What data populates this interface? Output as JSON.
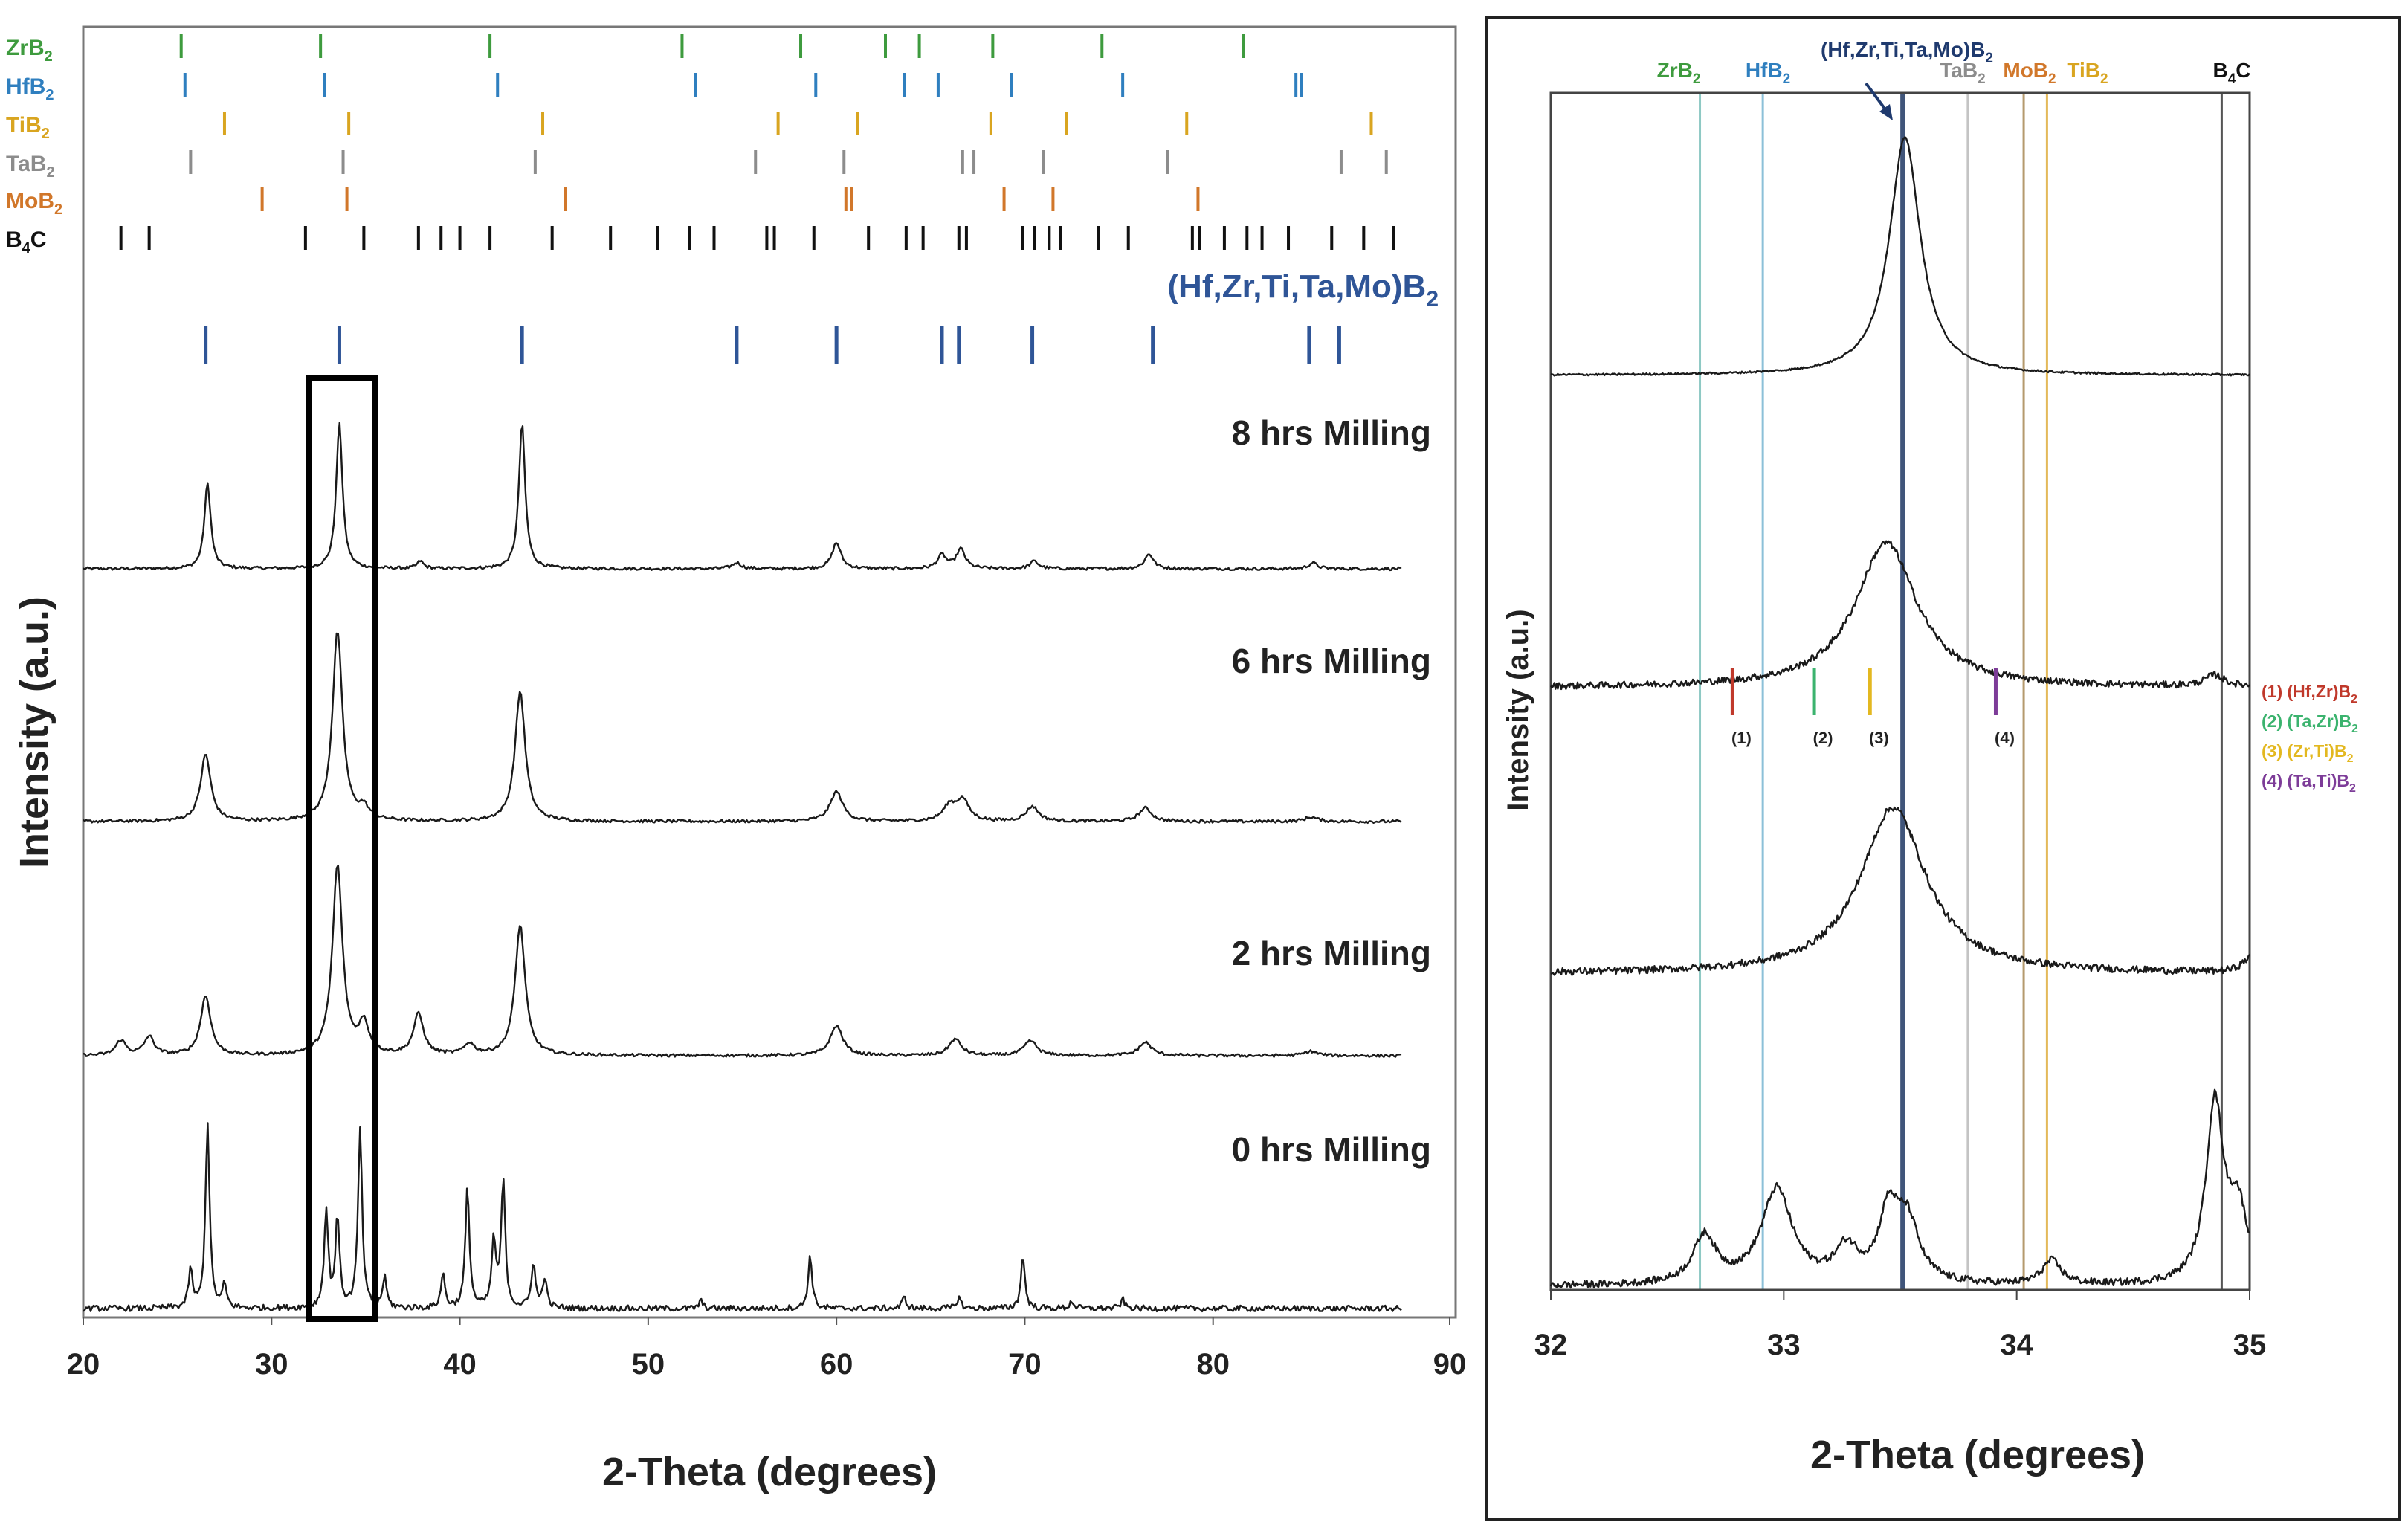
{
  "chart_data": [
    {
      "type": "line",
      "title": "",
      "xlabel": "2-Theta (degrees)",
      "ylabel": "Intensity (a.u.)",
      "xlim": [
        20,
        90
      ],
      "xticks": [
        "20",
        "30",
        "40",
        "50",
        "60",
        "70",
        "80",
        "90"
      ],
      "grid": false,
      "reference_phases": [
        {
          "name": "ZrB2",
          "label_base": "ZrB",
          "label_sub": "2",
          "color": "#3e9b3e",
          "peaks": [
            25.2,
            32.6,
            41.6,
            51.8,
            58.1,
            62.6,
            64.4,
            68.3,
            74.1,
            81.6
          ]
        },
        {
          "name": "HfB2",
          "label_base": "HfB",
          "label_sub": "2",
          "color": "#2f7fbf",
          "peaks": [
            25.4,
            32.8,
            42.0,
            52.5,
            58.9,
            63.6,
            65.4,
            69.3,
            75.2,
            84.4,
            84.7
          ]
        },
        {
          "name": "TiB2",
          "label_base": "TiB",
          "label_sub": "2",
          "color": "#d9a520",
          "peaks": [
            27.5,
            34.1,
            44.4,
            56.9,
            61.1,
            68.2,
            72.2,
            78.6,
            88.4
          ]
        },
        {
          "name": "TaB2",
          "label_base": "TaB",
          "label_sub": "2",
          "color": "#8c8c8c",
          "peaks": [
            25.7,
            33.8,
            44.0,
            55.7,
            60.4,
            66.7,
            67.3,
            71.0,
            77.6,
            86.8,
            89.2
          ]
        },
        {
          "name": "MoB2",
          "label_base": "MoB",
          "label_sub": "2",
          "color": "#d1772a",
          "peaks": [
            29.5,
            34.0,
            45.6,
            60.5,
            60.8,
            68.9,
            71.5,
            79.2
          ]
        },
        {
          "name": "B4C",
          "label_base": "B",
          "label_sub": "4",
          "label_tail": "C",
          "color": "#111111",
          "peaks": [
            22.0,
            23.5,
            31.8,
            34.9,
            37.8,
            39.0,
            40.0,
            41.6,
            44.9,
            48.0,
            50.5,
            52.2,
            53.5,
            56.3,
            56.7,
            58.8,
            61.7,
            63.7,
            64.6,
            66.5,
            66.9,
            69.9,
            70.5,
            71.3,
            71.9,
            73.9,
            75.5,
            78.9,
            79.3,
            80.6,
            81.8,
            82.6,
            84.0,
            86.3,
            88.0,
            89.6
          ]
        }
      ],
      "hea_phase": {
        "name": "(Hf,Zr,Ti,Ta,Mo)B2",
        "label_base": "(Hf,Zr,Ti,Ta,Mo)B",
        "label_sub": "2",
        "color": "#2f5597",
        "peaks": [
          26.5,
          33.6,
          43.3,
          54.7,
          60.0,
          65.6,
          66.5,
          70.4,
          76.8,
          85.1,
          86.7
        ]
      },
      "series": [
        {
          "name": "8 hrs Milling",
          "peaks": [
            [
              26.6,
              115
            ],
            [
              33.6,
              195
            ],
            [
              43.3,
              195
            ],
            [
              60.0,
              35
            ],
            [
              65.6,
              18
            ],
            [
              66.6,
              26
            ],
            [
              76.6,
              20
            ],
            [
              70.5,
              10
            ],
            [
              54.7,
              8
            ],
            [
              85.3,
              8
            ],
            [
              37.9,
              10
            ]
          ]
        },
        {
          "name": "6 hrs Milling",
          "peaks": [
            [
              26.5,
              90
            ],
            [
              33.5,
              255
            ],
            [
              43.2,
              175
            ],
            [
              60.0,
              40
            ],
            [
              66.0,
              20
            ],
            [
              66.7,
              28
            ],
            [
              70.4,
              20
            ],
            [
              76.4,
              18
            ],
            [
              34.9,
              15
            ],
            [
              85.2,
              6
            ]
          ]
        },
        {
          "name": "2 hrs Milling",
          "peaks": [
            [
              26.5,
              80
            ],
            [
              33.5,
              255
            ],
            [
              43.2,
              175
            ],
            [
              60.0,
              40
            ],
            [
              66.3,
              22
            ],
            [
              70.3,
              20
            ],
            [
              76.4,
              18
            ],
            [
              37.8,
              55
            ],
            [
              34.9,
              40
            ],
            [
              22.0,
              20
            ],
            [
              23.5,
              25
            ],
            [
              40.5,
              15
            ],
            [
              85.2,
              6
            ]
          ]
        },
        {
          "name": "0 hrs Milling",
          "peaks": [
            [
              26.6,
              250
            ],
            [
              25.7,
              50
            ],
            [
              27.5,
              30
            ],
            [
              32.9,
              130
            ],
            [
              33.5,
              120
            ],
            [
              34.7,
              240
            ],
            [
              36.0,
              40
            ],
            [
              39.1,
              45
            ],
            [
              40.4,
              160
            ],
            [
              41.8,
              90
            ],
            [
              42.3,
              170
            ],
            [
              43.9,
              60
            ],
            [
              44.5,
              40
            ],
            [
              58.6,
              70
            ],
            [
              69.9,
              70
            ],
            [
              63.6,
              15
            ],
            [
              66.5,
              15
            ],
            [
              72.5,
              10
            ],
            [
              75.2,
              12
            ],
            [
              52.8,
              10
            ]
          ]
        }
      ],
      "zoom_box": {
        "xmin": 32,
        "xmax": 35.5
      }
    },
    {
      "type": "line",
      "title": "",
      "xlabel": "2-Theta (degrees)",
      "ylabel": "Intensity (a.u.)",
      "xlim": [
        32,
        35
      ],
      "xticks": [
        "32",
        "33",
        "34",
        "35"
      ],
      "grid": false,
      "reference_lines": [
        {
          "name": "ZrB2",
          "label_base": "ZrB",
          "label_sub": "2",
          "x": 32.64,
          "color": "#8ec9c4"
        },
        {
          "name": "HfB2",
          "label_base": "HfB",
          "label_sub": "2",
          "x": 32.91,
          "color": "#8cc0d8"
        },
        {
          "name": "(Hf,Zr,Ti,Ta,Mo)B2",
          "label_base": "(Hf,Zr,Ti,Ta,Mo)B",
          "label_sub": "2",
          "x": 33.51,
          "color": "#40557a"
        },
        {
          "name": "TaB2",
          "label_base": "TaB",
          "label_sub": "2",
          "x": 33.79,
          "color": "#c4c4c4"
        },
        {
          "name": "MoB2",
          "label_base": "MoB",
          "label_sub": "2",
          "x": 34.03,
          "color": "#b59a6e"
        },
        {
          "name": "TiB2",
          "label_base": "TiB",
          "label_sub": "2",
          "x": 34.13,
          "color": "#e3b95a"
        },
        {
          "name": "B4C",
          "label_base": "B",
          "label_sub": "4",
          "label_tail": "C",
          "x": 34.88,
          "color": "#555555"
        }
      ],
      "reference_label_colors": {
        "ZrB2": "#3e9b3e",
        "HfB2": "#2f7fbf",
        "(Hf,Zr,Ti,Ta,Mo)B2": "#1f3a6e",
        "TaB2": "#8c8c8c",
        "MoB2": "#d1772a",
        "TiB2": "#d9a520",
        "B4C": "#111111"
      },
      "annotations": [
        {
          "mark": "(1)",
          "x": 32.78,
          "color": "#c0392b"
        },
        {
          "mark": "(2)",
          "x": 33.13,
          "color": "#3bb36e"
        },
        {
          "mark": "(3)",
          "x": 33.37,
          "color": "#e3b820"
        },
        {
          "mark": "(4)",
          "x": 33.91,
          "color": "#7d3c98"
        }
      ],
      "legend": [
        {
          "text": "(1) (Hf,Zr)B",
          "sub": "2",
          "color": "#c0392b"
        },
        {
          "text": "(2) (Ta,Zr)B",
          "sub": "2",
          "color": "#3bb36e"
        },
        {
          "text": "(3) (Zr,Ti)B",
          "sub": "2",
          "color": "#e3b820"
        },
        {
          "text": "(4) (Ta,Ti)B",
          "sub": "2",
          "color": "#7d3c98"
        }
      ],
      "legend_position": "right",
      "series": [
        {
          "name": "8 hrs",
          "peaks": [
            [
              33.52,
              1.0,
              0.08
            ]
          ]
        },
        {
          "name": "6 hrs",
          "peaks": [
            [
              33.44,
              0.65,
              0.16
            ],
            [
              34.85,
              0.05,
              0.05
            ]
          ]
        },
        {
          "name": "2 hrs",
          "peaks": [
            [
              33.47,
              0.7,
              0.17
            ],
            [
              35.0,
              0.06,
              0.04
            ]
          ]
        },
        {
          "name": "0 hrs",
          "peaks": [
            [
              32.66,
              0.2,
              0.06
            ],
            [
              32.97,
              0.4,
              0.08
            ],
            [
              33.27,
              0.14,
              0.06
            ],
            [
              33.45,
              0.28,
              0.05
            ],
            [
              33.53,
              0.25,
              0.06
            ],
            [
              34.15,
              0.1,
              0.05
            ],
            [
              34.85,
              0.75,
              0.045
            ],
            [
              34.95,
              0.3,
              0.05
            ]
          ]
        }
      ]
    }
  ]
}
